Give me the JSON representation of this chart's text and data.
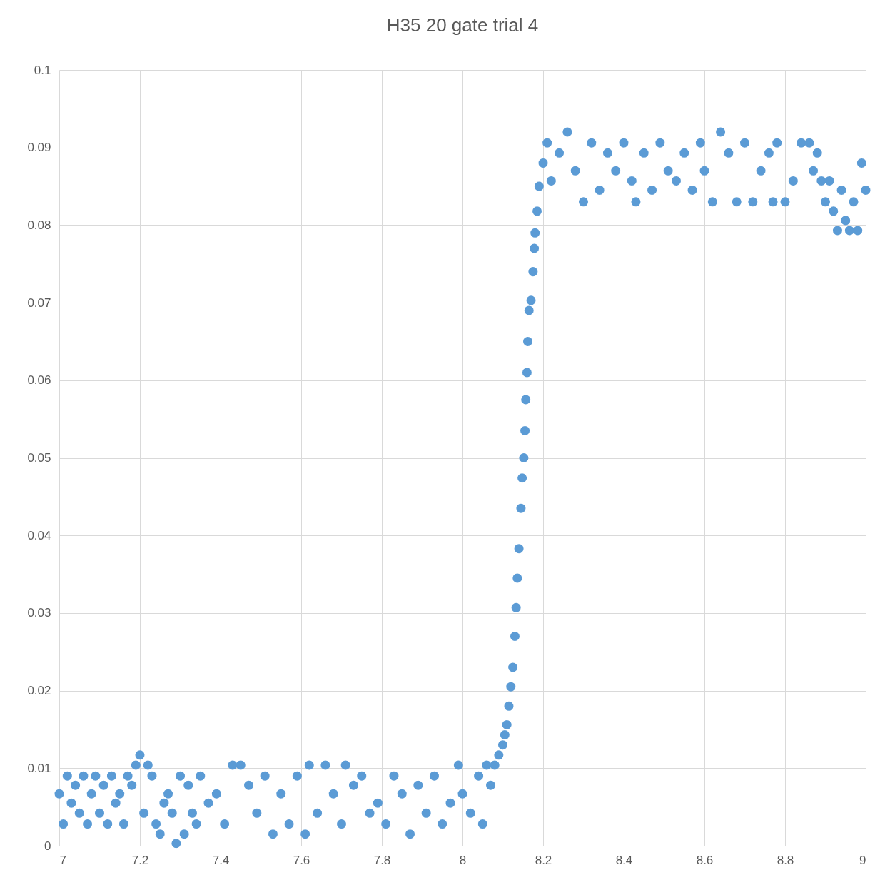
{
  "chart_data": {
    "type": "scatter",
    "title": "H35 20 gate trial 4",
    "color": "#5b9bd5",
    "marker": "circle",
    "grid": true,
    "xlim": [
      7,
      9
    ],
    "xticks": [
      7,
      7.2,
      7.4,
      7.6,
      7.8,
      8,
      8.2,
      8.4,
      8.6,
      8.8,
      9
    ],
    "ylim": [
      0,
      0.1
    ],
    "yticks": [
      0,
      0.01,
      0.02,
      0.03,
      0.04,
      0.05,
      0.06,
      0.07,
      0.08,
      0.09,
      0.1
    ],
    "x": [
      7,
      7.01,
      7.02,
      7.03,
      7.04,
      7.05,
      7.06,
      7.07,
      7.08,
      7.09,
      7.1,
      7.11,
      7.12,
      7.13,
      7.14,
      7.15,
      7.16,
      7.17,
      7.18,
      7.19,
      7.2,
      7.21,
      7.22,
      7.23,
      7.24,
      7.25,
      7.26,
      7.27,
      7.28,
      7.29,
      7.3,
      7.31,
      7.32,
      7.33,
      7.34,
      7.35,
      7.37,
      7.39,
      7.41,
      7.43,
      7.45,
      7.47,
      7.49,
      7.51,
      7.53,
      7.55,
      7.57,
      7.59,
      7.61,
      7.62,
      7.64,
      7.66,
      7.68,
      7.7,
      7.71,
      7.73,
      7.75,
      7.77,
      7.79,
      7.81,
      7.83,
      7.85,
      7.87,
      7.89,
      7.91,
      7.93,
      7.95,
      7.97,
      7.99,
      8,
      8.02,
      8.04,
      8.05,
      8.06,
      8.07,
      8.08,
      8.09,
      8.1,
      8.105,
      8.11,
      8.115,
      8.12,
      8.125,
      8.13,
      8.133,
      8.136,
      8.14,
      8.145,
      8.148,
      8.152,
      8.155,
      8.157,
      8.16,
      8.162,
      8.165,
      8.17,
      8.175,
      8.178,
      8.18,
      8.185,
      8.19,
      8.2,
      8.21,
      8.22,
      8.24,
      8.26,
      8.28,
      8.3,
      8.32,
      8.34,
      8.36,
      8.38,
      8.4,
      8.42,
      8.43,
      8.45,
      8.47,
      8.49,
      8.51,
      8.53,
      8.55,
      8.57,
      8.59,
      8.6,
      8.62,
      8.64,
      8.66,
      8.68,
      8.7,
      8.72,
      8.74,
      8.76,
      8.77,
      8.78,
      8.8,
      8.82,
      8.84,
      8.86,
      8.87,
      8.88,
      8.89,
      8.9,
      8.91,
      8.92,
      8.93,
      8.94,
      8.95,
      8.96,
      8.97,
      8.98,
      8.99,
      9
    ],
    "values": [
      0.0067,
      0.0028,
      0.009,
      0.0055,
      0.0078,
      0.0042,
      0.009,
      0.0028,
      0.0067,
      0.009,
      0.0042,
      0.0078,
      0.0028,
      0.009,
      0.0055,
      0.0067,
      0.0028,
      0.009,
      0.0078,
      0.0104,
      0.0117,
      0.0042,
      0.0104,
      0.009,
      0.0028,
      0.0015,
      0.0055,
      0.0067,
      0.0042,
      0.0003,
      0.009,
      0.0015,
      0.0078,
      0.0042,
      0.0028,
      0.009,
      0.0055,
      0.0067,
      0.0028,
      0.0104,
      0.0104,
      0.0078,
      0.0042,
      0.009,
      0.0015,
      0.0067,
      0.0028,
      0.009,
      0.0015,
      0.0104,
      0.0042,
      0.0104,
      0.0067,
      0.0028,
      0.0104,
      0.0078,
      0.009,
      0.0042,
      0.0055,
      0.0028,
      0.009,
      0.0067,
      0.0015,
      0.0078,
      0.0042,
      0.009,
      0.0028,
      0.0055,
      0.0104,
      0.0067,
      0.0042,
      0.009,
      0.0028,
      0.0104,
      0.0078,
      0.0104,
      0.0117,
      0.013,
      0.0143,
      0.0156,
      0.018,
      0.0205,
      0.023,
      0.027,
      0.0307,
      0.0345,
      0.0383,
      0.0435,
      0.0474,
      0.05,
      0.0535,
      0.0575,
      0.061,
      0.065,
      0.069,
      0.0703,
      0.074,
      0.077,
      0.079,
      0.0818,
      0.085,
      0.088,
      0.0906,
      0.0857,
      0.0893,
      0.092,
      0.087,
      0.083,
      0.0906,
      0.0845,
      0.0893,
      0.087,
      0.0906,
      0.0857,
      0.083,
      0.0893,
      0.0845,
      0.0906,
      0.087,
      0.0857,
      0.0893,
      0.0845,
      0.0906,
      0.087,
      0.083,
      0.092,
      0.0893,
      0.083,
      0.0906,
      0.083,
      0.087,
      0.0893,
      0.083,
      0.0906,
      0.083,
      0.0857,
      0.0906,
      0.0906,
      0.087,
      0.0893,
      0.0857,
      0.083,
      0.0857,
      0.0818,
      0.0793,
      0.0845,
      0.0806,
      0.0793,
      0.083,
      0.0793,
      0.088,
      0.0845
    ]
  }
}
